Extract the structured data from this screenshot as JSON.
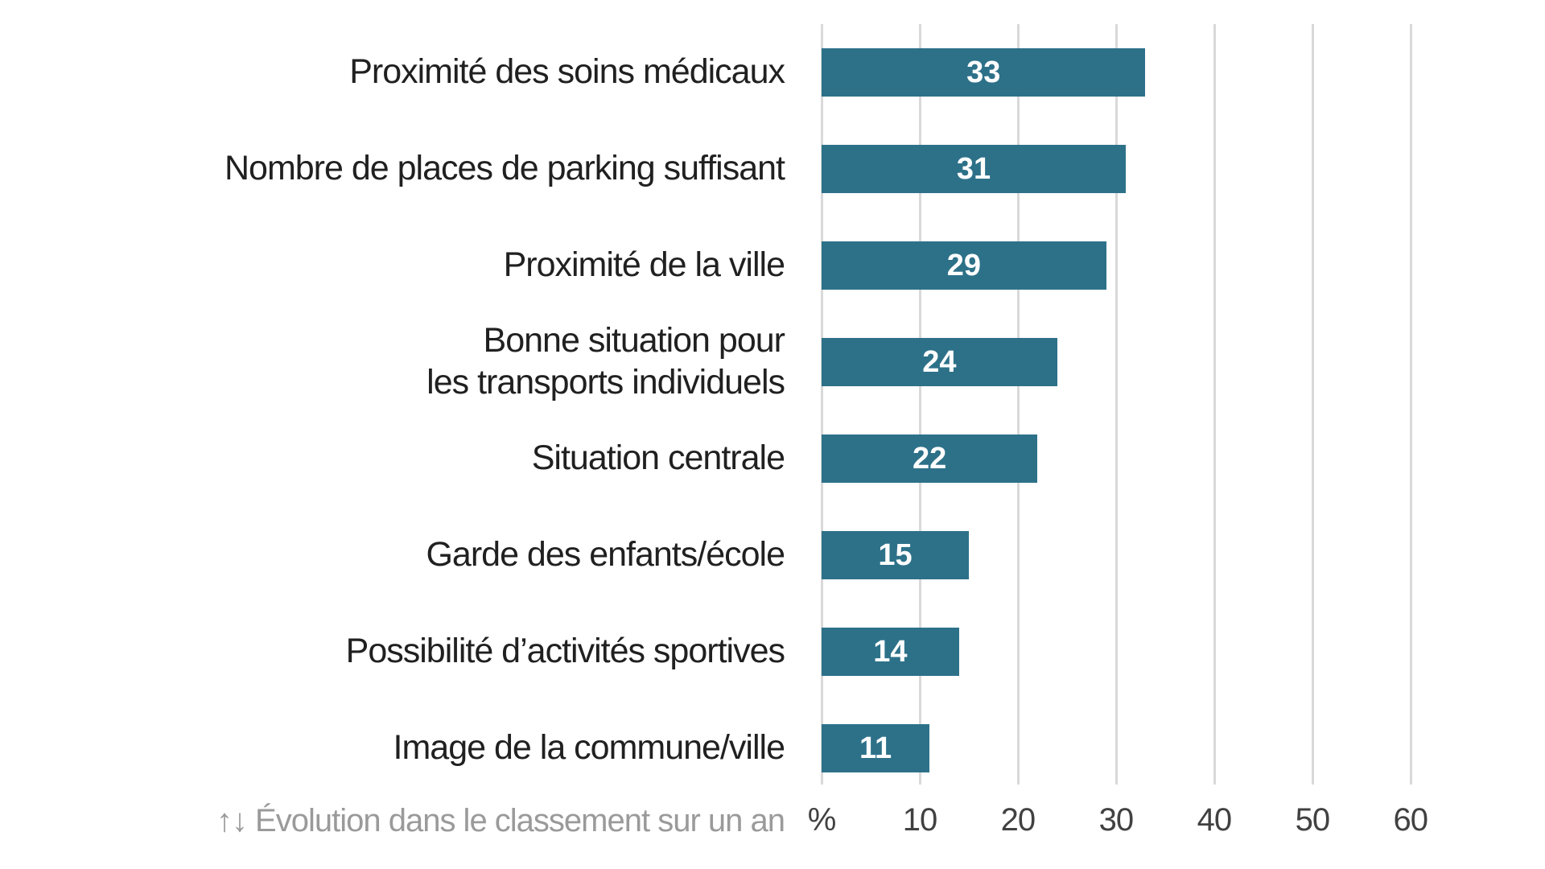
{
  "chart_data": {
    "type": "bar",
    "orientation": "horizontal",
    "categories": [
      "Proximité des soins médicaux",
      "Nombre de places de parking suffisant",
      "Proximité de la ville",
      "Bonne situation pour\nles transports individuels",
      "Situation centrale",
      "Garde des enfants/école",
      "Possibilité d’activités sportives",
      "Image de la commune/ville"
    ],
    "values": [
      33,
      31,
      29,
      24,
      22,
      15,
      14,
      11
    ],
    "value_labels": [
      "33",
      "31",
      "29",
      "24",
      "22",
      "15",
      "14",
      "11"
    ],
    "x_axis": {
      "ticks": [
        {
          "value": 0,
          "label": "%"
        },
        {
          "value": 10,
          "label": "10"
        },
        {
          "value": 20,
          "label": "20"
        },
        {
          "value": 30,
          "label": "30"
        },
        {
          "value": 40,
          "label": "40"
        },
        {
          "value": 50,
          "label": "50"
        },
        {
          "value": 60,
          "label": "60"
        }
      ],
      "max": 61
    },
    "grid": true,
    "legend": null,
    "title": "",
    "colors": {
      "bar": "#2d7189",
      "value_text": "#ffffff",
      "label_text": "#202020",
      "tick_text": "#414141",
      "gridline": "#d9d9d9",
      "footnote_text": "#9a9a9a",
      "background": "#ffffff"
    }
  },
  "footnote": {
    "text": "↑↓ Évolution dans le classement sur un an"
  }
}
